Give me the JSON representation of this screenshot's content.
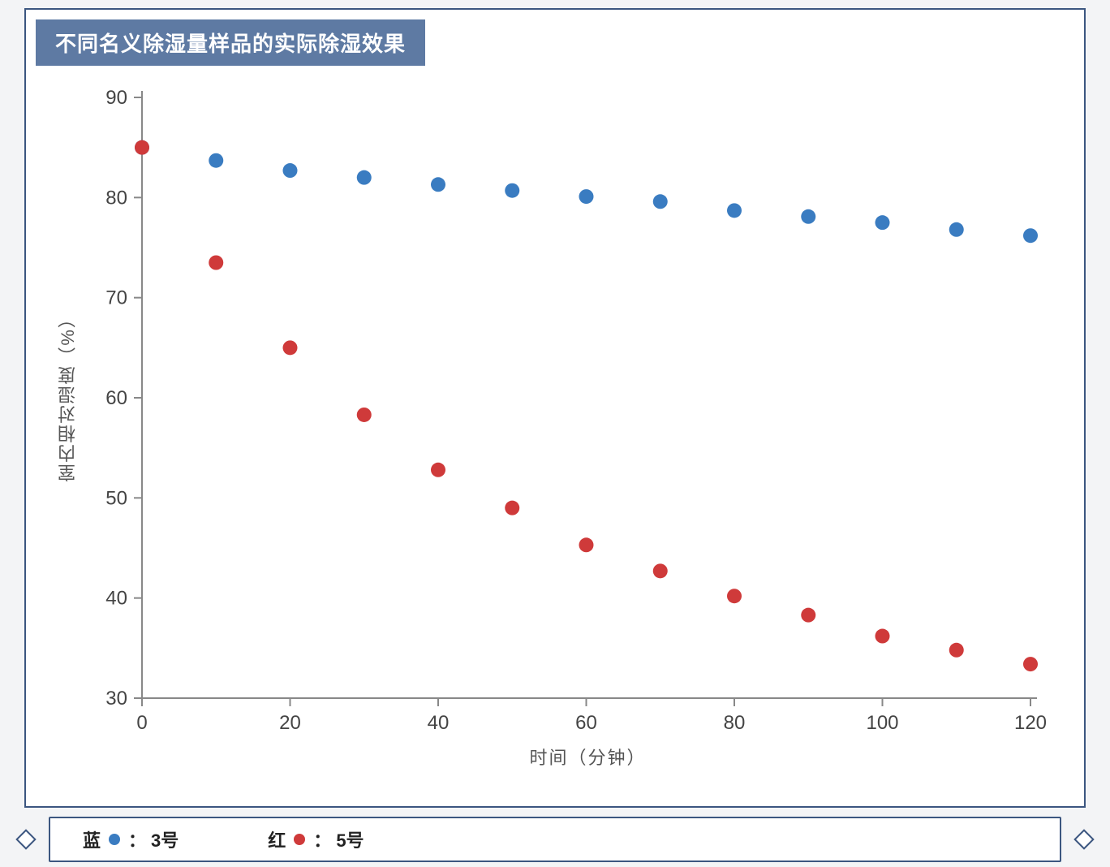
{
  "title": "不同名义除湿量样品的实际除湿效果",
  "chart": {
    "type": "scatter",
    "background_color": "#ffffff",
    "page_background": "#f3f4f6",
    "frame_border_color": "#3c5680",
    "title_bg": "#5e7aa3",
    "title_color": "#ffffff",
    "title_fontsize": 26,
    "xlabel": "时间（分钟）",
    "ylabel": "室内相对湿度（%）",
    "label_fontsize": 22,
    "label_color": "#555555",
    "xlim": [
      0,
      120
    ],
    "ylim": [
      30,
      90
    ],
    "xtick_step": 20,
    "xticks": [
      0,
      20,
      40,
      60,
      80,
      100,
      120
    ],
    "ytick_step": 10,
    "yticks": [
      30,
      40,
      50,
      60,
      70,
      80,
      90
    ],
    "tick_fontsize": 24,
    "tick_color": "#444444",
    "axis_line_color": "#888888",
    "grid": false,
    "marker_radius": 9,
    "series": [
      {
        "name": "blue",
        "label": "3号",
        "legend_prefix": "蓝",
        "color": "#3a7cc1",
        "x": [
          0,
          10,
          20,
          30,
          40,
          50,
          60,
          70,
          80,
          90,
          100,
          110,
          120
        ],
        "y": [
          85,
          83.7,
          82.7,
          82.0,
          81.3,
          80.7,
          80.1,
          79.6,
          78.7,
          78.1,
          77.5,
          76.8,
          76.2
        ]
      },
      {
        "name": "red",
        "label": "5号",
        "legend_prefix": "红",
        "color": "#cf3a3a",
        "x": [
          0,
          10,
          20,
          30,
          40,
          50,
          60,
          70,
          80,
          90,
          100,
          110,
          120
        ],
        "y": [
          85,
          73.5,
          65.0,
          58.3,
          52.8,
          49.0,
          45.3,
          42.7,
          40.2,
          38.3,
          36.2,
          34.8,
          33.4
        ]
      }
    ]
  },
  "legend": {
    "items": [
      {
        "prefix": "蓝",
        "label": "3号",
        "color": "#3a7cc1"
      },
      {
        "prefix": "红",
        "label": "5号",
        "color": "#cf3a3a"
      }
    ],
    "fontsize": 22,
    "border_color": "#3c5680"
  }
}
